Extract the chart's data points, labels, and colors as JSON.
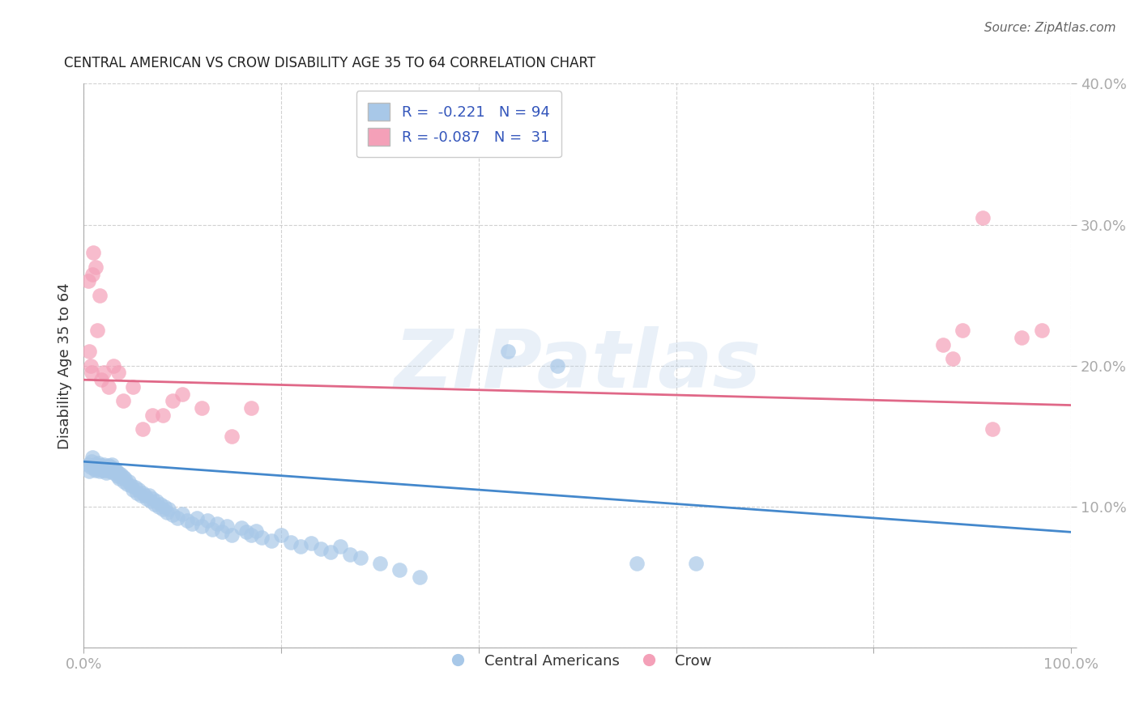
{
  "title": "CENTRAL AMERICAN VS CROW DISABILITY AGE 35 TO 64 CORRELATION CHART",
  "source": "Source: ZipAtlas.com",
  "ylabel": "Disability Age 35 to 64",
  "xlim": [
    0.0,
    1.0
  ],
  "ylim": [
    0.0,
    0.4
  ],
  "xticks": [
    0.0,
    0.2,
    0.4,
    0.6,
    0.8,
    1.0
  ],
  "xtick_labels": [
    "0.0%",
    "",
    "",
    "",
    "",
    "100.0%"
  ],
  "yticks": [
    0.0,
    0.1,
    0.2,
    0.3,
    0.4
  ],
  "ytick_labels": [
    "",
    "10.0%",
    "20.0%",
    "30.0%",
    "40.0%"
  ],
  "blue_color": "#a8c8e8",
  "pink_color": "#f4a0b8",
  "blue_line_color": "#4488cc",
  "pink_line_color": "#e06888",
  "R_blue": -0.221,
  "N_blue": 94,
  "R_pink": -0.087,
  "N_pink": 31,
  "legend_label_blue": "Central Americans",
  "legend_label_pink": "Crow",
  "blue_trendline_x0": 0.0,
  "blue_trendline_y0": 0.132,
  "blue_trendline_x1": 1.0,
  "blue_trendline_y1": 0.082,
  "pink_trendline_x0": 0.0,
  "pink_trendline_y0": 0.19,
  "pink_trendline_x1": 1.0,
  "pink_trendline_y1": 0.172,
  "blue_x": [
    0.005,
    0.006,
    0.007,
    0.008,
    0.009,
    0.01,
    0.011,
    0.012,
    0.013,
    0.014,
    0.015,
    0.016,
    0.017,
    0.018,
    0.019,
    0.02,
    0.021,
    0.022,
    0.023,
    0.024,
    0.025,
    0.026,
    0.027,
    0.028,
    0.029,
    0.03,
    0.031,
    0.032,
    0.033,
    0.034,
    0.035,
    0.036,
    0.037,
    0.038,
    0.04,
    0.041,
    0.042,
    0.044,
    0.046,
    0.048,
    0.05,
    0.052,
    0.054,
    0.056,
    0.058,
    0.06,
    0.062,
    0.064,
    0.066,
    0.068,
    0.07,
    0.072,
    0.074,
    0.076,
    0.078,
    0.08,
    0.082,
    0.084,
    0.086,
    0.09,
    0.095,
    0.1,
    0.105,
    0.11,
    0.115,
    0.12,
    0.125,
    0.13,
    0.135,
    0.14,
    0.145,
    0.15,
    0.16,
    0.165,
    0.17,
    0.175,
    0.18,
    0.19,
    0.2,
    0.21,
    0.22,
    0.23,
    0.24,
    0.25,
    0.26,
    0.27,
    0.28,
    0.3,
    0.32,
    0.34,
    0.43,
    0.48,
    0.56,
    0.62
  ],
  "blue_y": [
    0.13,
    0.125,
    0.128,
    0.132,
    0.135,
    0.129,
    0.127,
    0.126,
    0.13,
    0.128,
    0.131,
    0.125,
    0.127,
    0.129,
    0.126,
    0.13,
    0.128,
    0.126,
    0.124,
    0.127,
    0.129,
    0.125,
    0.126,
    0.128,
    0.13,
    0.124,
    0.127,
    0.125,
    0.126,
    0.122,
    0.124,
    0.12,
    0.122,
    0.123,
    0.121,
    0.118,
    0.12,
    0.116,
    0.118,
    0.115,
    0.112,
    0.114,
    0.11,
    0.112,
    0.108,
    0.11,
    0.108,
    0.106,
    0.108,
    0.104,
    0.106,
    0.102,
    0.104,
    0.1,
    0.102,
    0.098,
    0.1,
    0.096,
    0.098,
    0.094,
    0.092,
    0.095,
    0.09,
    0.088,
    0.092,
    0.086,
    0.09,
    0.084,
    0.088,
    0.082,
    0.086,
    0.08,
    0.085,
    0.082,
    0.08,
    0.083,
    0.078,
    0.076,
    0.08,
    0.075,
    0.072,
    0.074,
    0.07,
    0.068,
    0.072,
    0.066,
    0.064,
    0.06,
    0.055,
    0.05,
    0.21,
    0.2,
    0.06,
    0.06
  ],
  "pink_x": [
    0.005,
    0.006,
    0.007,
    0.008,
    0.009,
    0.01,
    0.012,
    0.014,
    0.016,
    0.018,
    0.02,
    0.025,
    0.03,
    0.035,
    0.04,
    0.05,
    0.06,
    0.07,
    0.08,
    0.09,
    0.1,
    0.12,
    0.15,
    0.17,
    0.87,
    0.88,
    0.89,
    0.91,
    0.92,
    0.95,
    0.97
  ],
  "pink_y": [
    0.26,
    0.21,
    0.2,
    0.195,
    0.265,
    0.28,
    0.27,
    0.225,
    0.25,
    0.19,
    0.195,
    0.185,
    0.2,
    0.195,
    0.175,
    0.185,
    0.155,
    0.165,
    0.165,
    0.175,
    0.18,
    0.17,
    0.15,
    0.17,
    0.215,
    0.205,
    0.225,
    0.305,
    0.155,
    0.22,
    0.225
  ]
}
